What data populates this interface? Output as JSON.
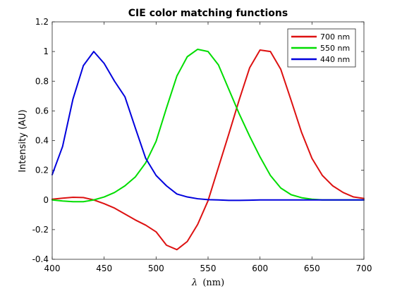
{
  "chart_data": {
    "type": "line",
    "title": "CIE color matching functions",
    "xlabel_symbol": "λ",
    "xlabel_unit": "(nm)",
    "ylabel": "Intensity (AU)",
    "xlim": [
      400,
      700
    ],
    "ylim": [
      -0.4,
      1.2
    ],
    "xticks": [
      400,
      450,
      500,
      550,
      600,
      650,
      700
    ],
    "yticks": [
      -0.4,
      -0.2,
      0,
      0.2,
      0.4,
      0.6,
      0.8,
      1,
      1.2
    ],
    "ytick_labels": [
      "-0.4",
      "-0.2",
      "0",
      "0.2",
      "0.4",
      "0.6",
      "0.8",
      "1",
      "1.2"
    ],
    "grid": false,
    "legend_position": "top-right",
    "x": [
      400,
      410,
      420,
      430,
      440,
      450,
      460,
      470,
      480,
      490,
      500,
      510,
      520,
      530,
      540,
      550,
      560,
      570,
      580,
      590,
      600,
      610,
      620,
      630,
      640,
      650,
      660,
      670,
      680,
      690,
      700
    ],
    "series": [
      {
        "name": "700 nm",
        "color": "#dd1111",
        "values": [
          0.005,
          0.012,
          0.018,
          0.016,
          0.0,
          -0.025,
          -0.055,
          -0.095,
          -0.135,
          -0.17,
          -0.215,
          -0.305,
          -0.335,
          -0.28,
          -0.165,
          -0.005,
          0.22,
          0.445,
          0.675,
          0.89,
          1.01,
          1.0,
          0.88,
          0.67,
          0.455,
          0.28,
          0.165,
          0.095,
          0.05,
          0.02,
          0.01
        ]
      },
      {
        "name": "550 nm",
        "color": "#00dd00",
        "values": [
          0.0,
          -0.007,
          -0.012,
          -0.012,
          0.0,
          0.02,
          0.05,
          0.095,
          0.155,
          0.25,
          0.395,
          0.62,
          0.835,
          0.965,
          1.015,
          1.0,
          0.91,
          0.745,
          0.58,
          0.43,
          0.29,
          0.165,
          0.08,
          0.035,
          0.015,
          0.005,
          0.0,
          0.0,
          0.0,
          0.0,
          0.0
        ]
      },
      {
        "name": "440 nm",
        "color": "#0000dd",
        "values": [
          0.17,
          0.36,
          0.68,
          0.905,
          1.0,
          0.92,
          0.8,
          0.695,
          0.485,
          0.28,
          0.165,
          0.095,
          0.04,
          0.02,
          0.008,
          0.002,
          0.0,
          -0.003,
          -0.003,
          -0.002,
          0.0,
          0.0,
          0.0,
          0.0,
          0.0,
          0.0,
          0.0,
          0.0,
          0.0,
          0.0,
          0.0
        ]
      }
    ]
  }
}
